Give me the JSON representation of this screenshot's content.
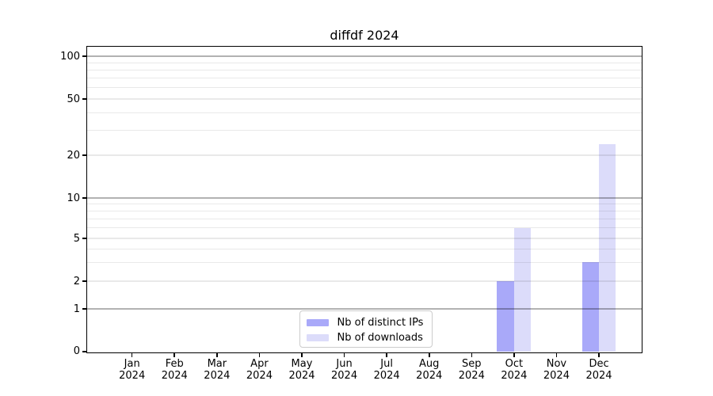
{
  "chart_data": {
    "type": "bar",
    "title": "diffdf 2024",
    "xlabel": "",
    "ylabel": "",
    "categories": [
      "Jan 2024",
      "Feb 2024",
      "Mar 2024",
      "Apr 2024",
      "May 2024",
      "Jun 2024",
      "Jul 2024",
      "Aug 2024",
      "Sep 2024",
      "Oct 2024",
      "Nov 2024",
      "Dec 2024"
    ],
    "series": [
      {
        "name": "Nb of distinct IPs",
        "color": "#a9a9f9",
        "values": [
          0,
          0,
          0,
          0,
          0,
          0,
          0,
          0,
          0,
          2,
          0,
          3
        ]
      },
      {
        "name": "Nb of downloads",
        "color": "#dcdcfa",
        "values": [
          0,
          0,
          0,
          0,
          0,
          0,
          0,
          0,
          0,
          6,
          0,
          24
        ]
      }
    ],
    "yscale": "symlog (linear 0-1, logarithmic above 1)",
    "ylim": [
      0,
      117
    ],
    "y_ticks": [
      0,
      1,
      2,
      5,
      10,
      20,
      50,
      100
    ],
    "y_major_gridlines": [
      1,
      10,
      100
    ],
    "y_minor_gridlines": [
      2,
      3,
      4,
      5,
      6,
      7,
      8,
      9,
      20,
      30,
      40,
      50,
      60,
      70,
      80,
      90
    ],
    "grid": true,
    "legend_position": "lower center",
    "legend_labels": [
      "Nb of distinct IPs",
      "Nb of downloads"
    ]
  },
  "colors": {
    "bar_distinct_ips": "#a9a9f9",
    "bar_downloads": "#dcdcfa",
    "major_gridline": "#b3b3b3",
    "minor_gridline": "#e9e9e9",
    "axis_spine": "#000000",
    "legend_border": "#cccccc",
    "background": "#ffffff",
    "text": "#000000"
  }
}
